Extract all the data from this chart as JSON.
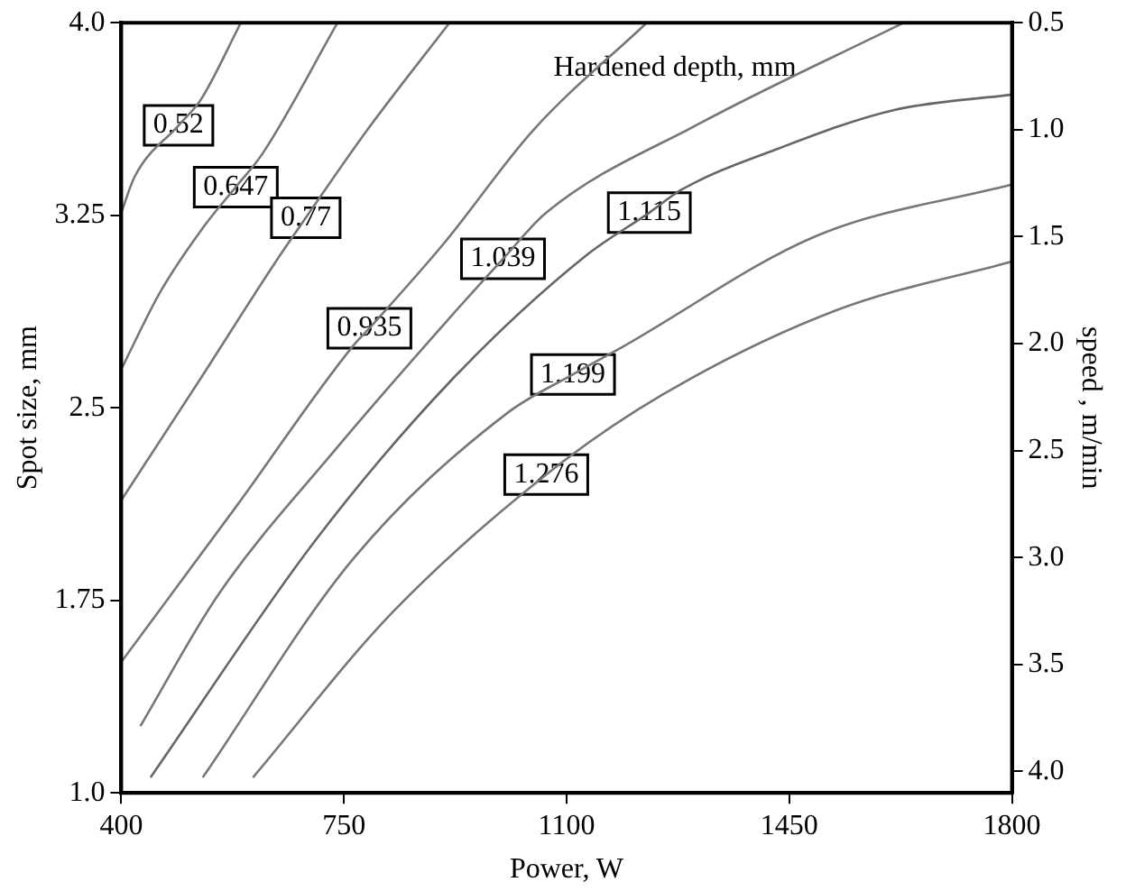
{
  "chart_data": {
    "type": "line",
    "title": "Hardened depth, mm",
    "xlabel": "Power, W",
    "ylabel": "Spot size, mm",
    "y2label": "speed , m/min",
    "xlim": [
      400,
      1800
    ],
    "xticks": [
      400,
      750,
      1100,
      1450,
      1800
    ],
    "ylim": [
      1.0,
      4.0
    ],
    "yticks": [
      {
        "value": 1.0,
        "label": "1.0"
      },
      1.75,
      2.5,
      3.25,
      {
        "value": 4.0,
        "label": "4.0"
      }
    ],
    "y2lim": [
      4.1,
      0.5
    ],
    "y2ticks": [
      0.5,
      {
        "value": 1.0,
        "label": "1.0"
      },
      1.5,
      {
        "value": 2.0,
        "label": "2.0"
      },
      2.5,
      {
        "value": 3.0,
        "label": "3.0"
      },
      3.5,
      {
        "value": 4.0,
        "label": "4.0"
      }
    ],
    "grid": false,
    "legend": false,
    "marker": "none",
    "line_style": "solid",
    "series": [
      {
        "color": "#777777",
        "x": [
          400,
          421,
          490,
          525,
          588
        ],
        "values": [
          3.26,
          3.4,
          3.6,
          3.7,
          4.0
        ]
      },
      {
        "color": "#777777",
        "x": [
          400,
          461,
          531,
          580,
          622,
          740
        ],
        "values": [
          2.65,
          2.95,
          3.21,
          3.36,
          3.49,
          4.0
        ]
      },
      {
        "color": "#777777",
        "x": [
          400,
          521,
          643,
          690,
          786,
          916
        ],
        "values": [
          2.14,
          2.6,
          3.07,
          3.24,
          3.58,
          4.0
        ]
      },
      {
        "color": "#777777",
        "x": [
          400,
          582,
          764,
          790,
          907,
          1047,
          1226
        ],
        "values": [
          1.51,
          2.12,
          2.74,
          2.81,
          3.14,
          3.58,
          4.0
        ]
      },
      {
        "color": "#777777",
        "x": [
          430,
          552,
          734,
          916,
          1000,
          1068,
          1311,
          1630
        ],
        "values": [
          1.26,
          1.77,
          2.33,
          2.85,
          3.08,
          3.26,
          3.61,
          4.0
        ]
      },
      {
        "color": "#666666",
        "x": [
          446,
          704,
          916,
          1129,
          1230,
          1281,
          1433,
          1615,
          1800
        ],
        "values": [
          1.06,
          1.98,
          2.6,
          3.09,
          3.26,
          3.35,
          3.51,
          3.66,
          3.72
        ]
      },
      {
        "color": "#777777",
        "x": [
          528,
          764,
          1007,
          1110,
          1190,
          1493,
          1800
        ],
        "values": [
          1.06,
          1.91,
          2.48,
          2.63,
          2.74,
          3.17,
          3.37
        ]
      },
      {
        "color": "#777777",
        "x": [
          607,
          825,
          1068,
          1250,
          1524,
          1800
        ],
        "values": [
          1.06,
          1.7,
          2.24,
          2.55,
          2.88,
          3.07
        ]
      }
    ],
    "annotations": [
      {
        "text": "0.52",
        "x": 490,
        "y": 3.6
      },
      {
        "text": "0.647",
        "x": 580,
        "y": 3.36
      },
      {
        "text": "0.77",
        "x": 690,
        "y": 3.24
      },
      {
        "text": "0.935",
        "x": 790,
        "y": 2.81
      },
      {
        "text": "1.039",
        "x": 1000,
        "y": 3.08
      },
      {
        "text": "1.115",
        "x": 1230,
        "y": 3.26
      },
      {
        "text": "1.199",
        "x": 1110,
        "y": 2.63
      },
      {
        "text": "1.276",
        "x": 1068,
        "y": 2.24
      }
    ]
  }
}
